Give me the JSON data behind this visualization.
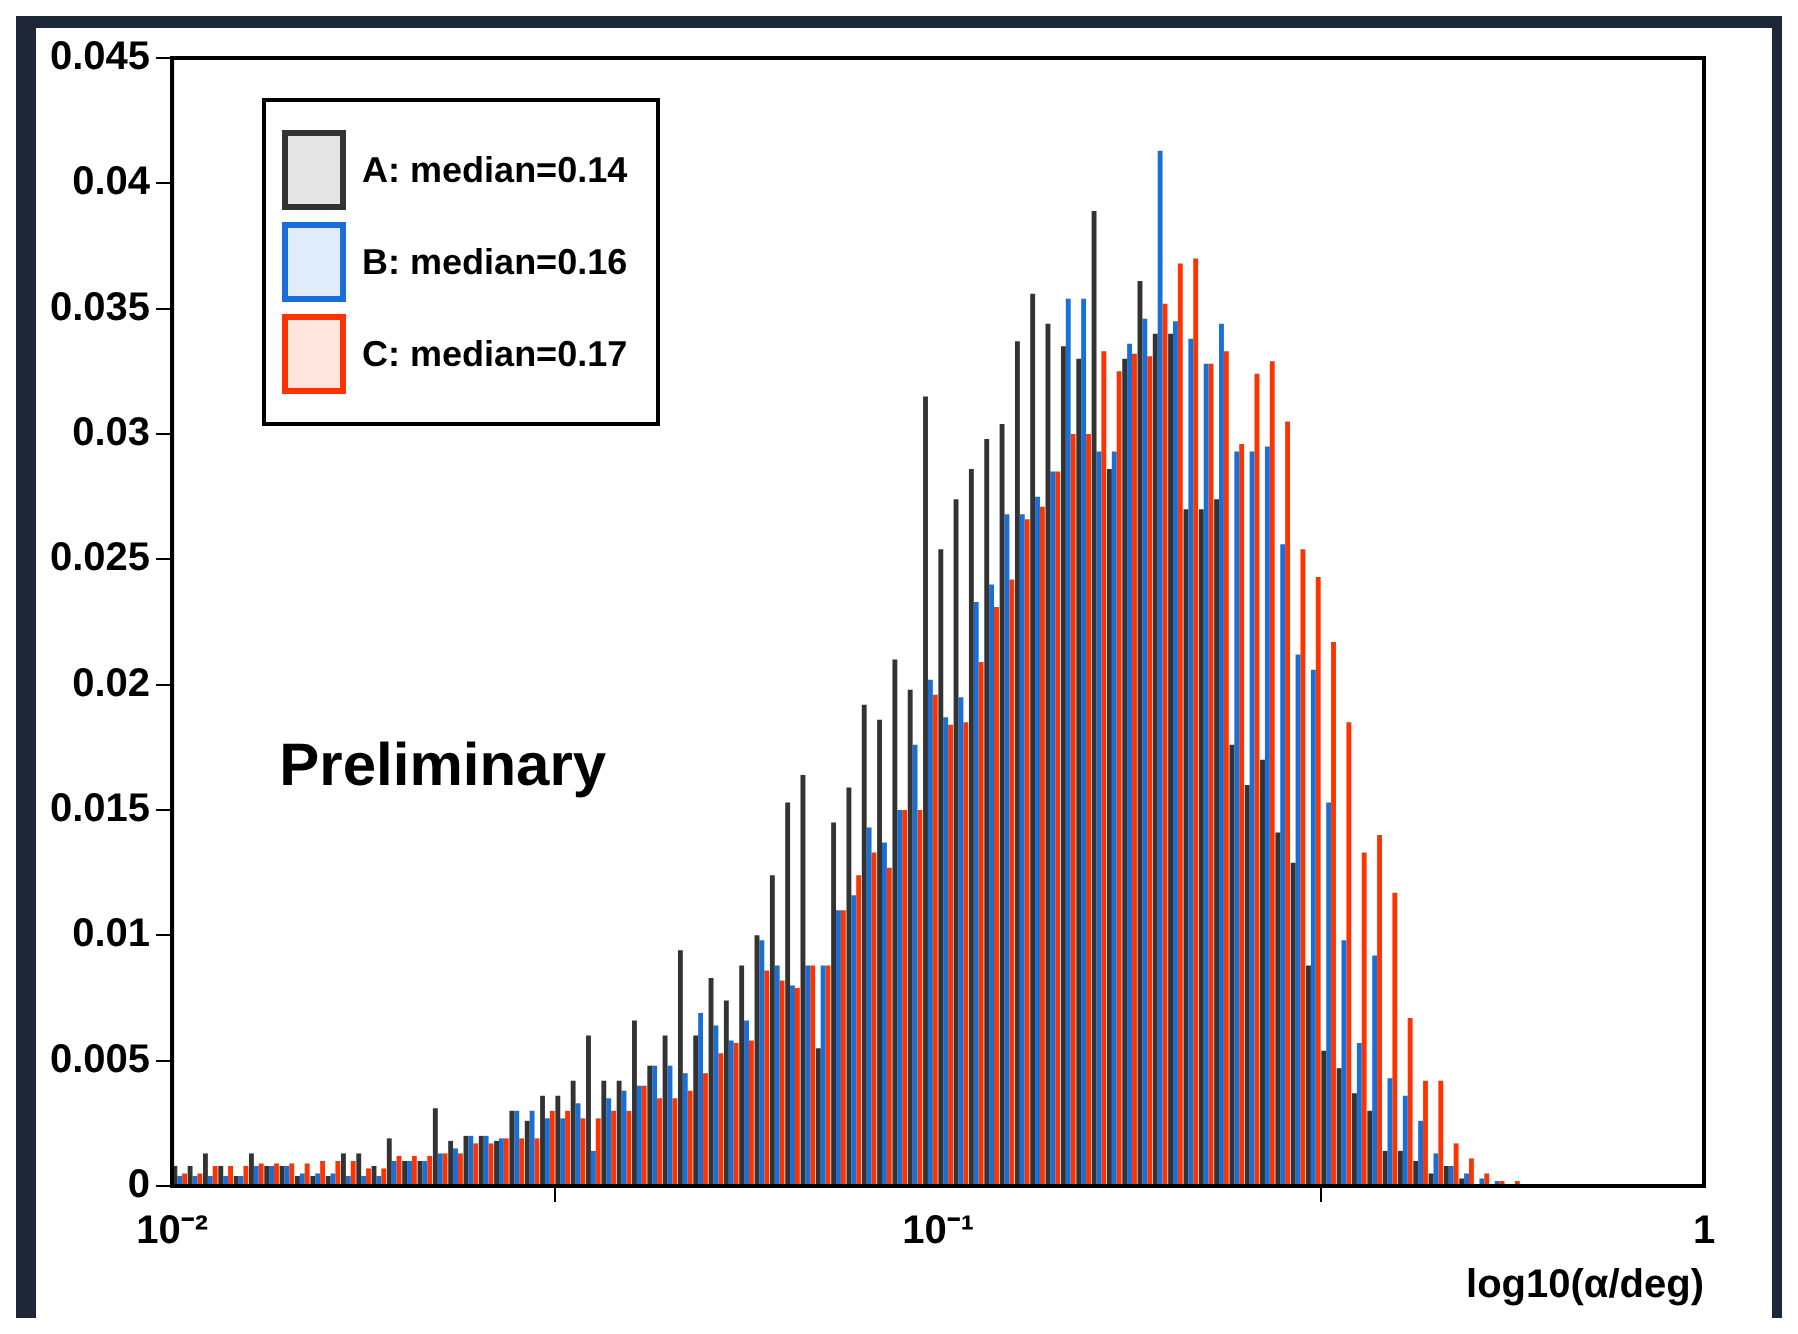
{
  "chart_data": {
    "type": "histogram",
    "xlabel": "log10(α/deg)",
    "log": "x",
    "xlim": [
      0.01,
      1
    ],
    "xticks": [
      {
        "value": 0.01,
        "label": "10⁻²"
      },
      {
        "value": 0.1,
        "label": "10⁻¹"
      },
      1
    ],
    "ylim": [
      0,
      0.045
    ],
    "yticks": [
      0,
      0.005,
      0.01,
      0.015,
      0.02,
      0.025,
      0.03,
      0.035,
      0.04,
      0.045
    ],
    "legend": "top left",
    "annotations": [
      "Preliminary"
    ],
    "bins": [
      0.01,
      0.01047,
      0.01096,
      0.01148,
      0.01202,
      0.01259,
      0.01318,
      0.0138,
      0.01445,
      0.01514,
      0.01585,
      0.0166,
      0.01738,
      0.0182,
      0.01905,
      0.01995,
      0.02089,
      0.02188,
      0.02291,
      0.02399,
      0.02512,
      0.0263,
      0.02754,
      0.02884,
      0.0302,
      0.03162,
      0.03311,
      0.03467,
      0.03631,
      0.03802,
      0.03981,
      0.04169,
      0.04365,
      0.04571,
      0.04786,
      0.05012,
      0.05248,
      0.05495,
      0.05754,
      0.06026,
      0.0631,
      0.06607,
      0.06918,
      0.07244,
      0.07586,
      0.07943,
      0.08318,
      0.0871,
      0.0912,
      0.0955,
      0.1,
      0.1047,
      0.1096,
      0.1148,
      0.1202,
      0.1259,
      0.1318,
      0.138,
      0.1445,
      0.1514,
      0.1585,
      0.166,
      0.1738,
      0.182,
      0.1905,
      0.1995,
      0.2089,
      0.2188,
      0.2291,
      0.2399,
      0.2512,
      0.263,
      0.2754,
      0.2884,
      0.302,
      0.3162,
      0.3311,
      0.3467,
      0.3631,
      0.3802,
      0.3981,
      0.4169,
      0.4365,
      0.4571,
      0.4786,
      0.5012,
      0.5248,
      0.5495,
      0.5754,
      0.6026,
      0.631,
      0.6607,
      0.6918,
      0.7244,
      0.7586,
      0.7943,
      0.8318,
      0.871,
      0.912,
      0.955,
      1
    ],
    "series": [
      {
        "name": "A: median=0.14",
        "color": "#333333",
        "values": [
          0.0008,
          0.0008,
          0.0013,
          0.0008,
          0.0004,
          0.0013,
          0.0008,
          0.0008,
          0.0004,
          0.0004,
          0.0004,
          0.0013,
          0.0013,
          0.0008,
          0.0019,
          0.001,
          0.001,
          0.0031,
          0.0018,
          0.002,
          0.002,
          0.0018,
          0.003,
          0.0026,
          0.0036,
          0.0036,
          0.0042,
          0.006,
          0.0042,
          0.0042,
          0.0066,
          0.0048,
          0.006,
          0.0094,
          0.006,
          0.0083,
          0.0074,
          0.0088,
          0.01,
          0.0124,
          0.0153,
          0.0164,
          0.0055,
          0.0145,
          0.0159,
          0.0192,
          0.0186,
          0.021,
          0.0198,
          0.0315,
          0.0254,
          0.0274,
          0.0286,
          0.0298,
          0.0304,
          0.0337,
          0.0356,
          0.0344,
          0.0335,
          0.033,
          0.0389,
          0.0286,
          0.033,
          0.0361,
          0.034,
          0.034,
          0.027,
          0.027,
          0.0274,
          0.0176,
          0.016,
          0.017,
          0.0141,
          0.0129,
          0.0088,
          0.0054,
          0.0047,
          0.0037,
          0.003,
          0.0014,
          0.0014,
          0.001,
          0.0005,
          0.0008,
          0.0003,
          0,
          0,
          0,
          0,
          0,
          0,
          0,
          0,
          0,
          0,
          0,
          0,
          0,
          0,
          0
        ]
      },
      {
        "name": "B: median=0.16",
        "color": "#1a6fd6",
        "values": [
          0.0004,
          0.0004,
          0.0004,
          0.0004,
          0.0004,
          0.0008,
          0.0008,
          0.0008,
          0.0005,
          0.0005,
          0.0005,
          0.0004,
          0.0004,
          0.0004,
          0.001,
          0.001,
          0.001,
          0.0013,
          0.0015,
          0.002,
          0.002,
          0.0019,
          0.003,
          0.003,
          0.0027,
          0.0027,
          0.0033,
          0.0014,
          0.0035,
          0.0038,
          0.004,
          0.0048,
          0.0048,
          0.0045,
          0.0069,
          0.0064,
          0.0058,
          0.0066,
          0.0098,
          0.0088,
          0.008,
          0.0088,
          0.0088,
          0.011,
          0.0116,
          0.0143,
          0.0137,
          0.015,
          0.0176,
          0.0202,
          0.0187,
          0.0195,
          0.0233,
          0.024,
          0.0268,
          0.0268,
          0.0275,
          0.0285,
          0.0354,
          0.0354,
          0.0293,
          0.0293,
          0.0336,
          0.0346,
          0.0413,
          0.0345,
          0.0338,
          0.0328,
          0.0344,
          0.0293,
          0.0293,
          0.0295,
          0.0256,
          0.0212,
          0.0206,
          0.0153,
          0.0098,
          0.0057,
          0.0092,
          0.0043,
          0.0036,
          0.0026,
          0.0013,
          0.0008,
          0.0005,
          0.0003,
          0.0002,
          0,
          0,
          0,
          0,
          0,
          0,
          0,
          0,
          0,
          0,
          0,
          0,
          0
        ]
      },
      {
        "name": "C: median=0.17",
        "color": "#ff3300",
        "values": [
          0.0005,
          0.0005,
          0.0008,
          0.0008,
          0.0008,
          0.0009,
          0.0009,
          0.0009,
          0.0009,
          0.001,
          0.001,
          0.001,
          0.0007,
          0.0007,
          0.0012,
          0.0012,
          0.0012,
          0.0013,
          0.0013,
          0.0017,
          0.0017,
          0.0019,
          0.0019,
          0.0019,
          0.003,
          0.003,
          0.0027,
          0.0027,
          0.003,
          0.003,
          0.004,
          0.0035,
          0.0035,
          0.0038,
          0.0045,
          0.0053,
          0.0057,
          0.0058,
          0.0086,
          0.0082,
          0.0079,
          0.0088,
          0.0088,
          0.011,
          0.0124,
          0.0133,
          0.0127,
          0.015,
          0.015,
          0.0196,
          0.0184,
          0.0185,
          0.0209,
          0.0231,
          0.0242,
          0.0266,
          0.0271,
          0.0285,
          0.03,
          0.03,
          0.0333,
          0.0325,
          0.0332,
          0.0331,
          0.0352,
          0.0368,
          0.037,
          0.0328,
          0.0333,
          0.0296,
          0.0324,
          0.0329,
          0.0305,
          0.0254,
          0.0243,
          0.0217,
          0.0185,
          0.0133,
          0.014,
          0.0117,
          0.0067,
          0.0042,
          0.0042,
          0.0017,
          0.0011,
          0.0005,
          0.0002,
          0.0002,
          0,
          0,
          0,
          0,
          0,
          0,
          0,
          0,
          0,
          0,
          0,
          0
        ]
      }
    ]
  }
}
